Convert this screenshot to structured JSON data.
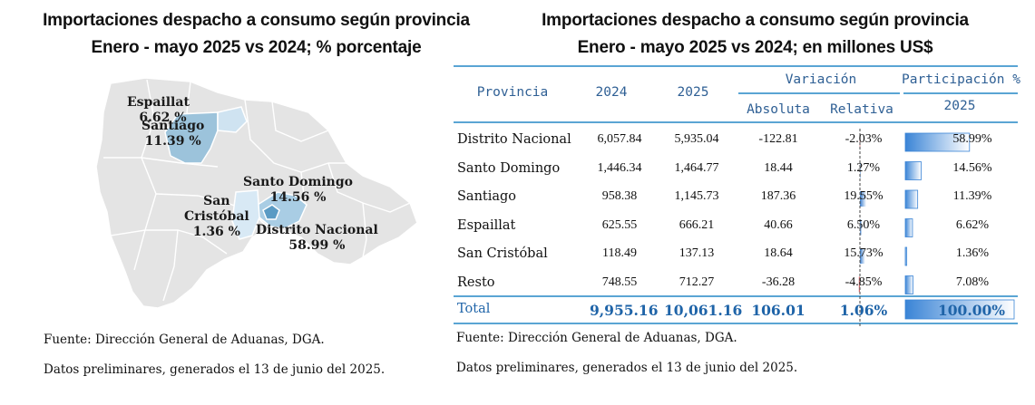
{
  "left_chart": {
    "title_line1": "Importaciones despacho a consumo según provincia",
    "title_line2": "Enero - mayo 2025 vs 2024; % porcentaje",
    "labels": {
      "espaillat": [
        "Espaillat",
        "6.62 %"
      ],
      "santiago": [
        "Santiago",
        "11.39 %"
      ],
      "santo_domingo": [
        "Santo Domingo",
        "14.56 %"
      ],
      "san_cristobal": [
        "San",
        "Cristóbal",
        "1.36 %"
      ],
      "distrito_nacional": [
        "Distrito Nacional",
        "58.99 %"
      ]
    },
    "colors": {
      "land": "#e4e4e4",
      "border": "#ffffff",
      "santiago": "#9cc3db",
      "espaillat": "#cfe3f1",
      "santo_domingo": "#a9cde4",
      "san_cristobal": "#d8e9f5",
      "distrito_nacional": "#5a9bc4"
    },
    "source": "Fuente: Dirección  General de Aduanas, DGA.",
    "note": "Datos preliminares, generados el  13 de junio del  2025."
  },
  "right_table": {
    "title_line1": "Importaciones despacho a consumo según provincia",
    "title_line2": "Enero - mayo 2025 vs 2024; en millones US$",
    "headers": {
      "provincia": "Provincia",
      "y2024": "2024",
      "y2025": "2025",
      "variacion": "Variación",
      "absoluta": "Absoluta",
      "relativa": "Relativa",
      "participacion": "Participación %",
      "participacion_year": "2025"
    },
    "rows": [
      {
        "provincia": "Distrito Nacional",
        "y2024": "6,057.84",
        "y2025": "5,935.04",
        "absoluta": "-122.81",
        "relativa": "-2.03%",
        "participacion": "58.99%"
      },
      {
        "provincia": "Santo Domingo",
        "y2024": "1,446.34",
        "y2025": "1,464.77",
        "absoluta": "18.44",
        "relativa": "1.27%",
        "participacion": "14.56%"
      },
      {
        "provincia": "Santiago",
        "y2024": "958.38",
        "y2025": "1,145.73",
        "absoluta": "187.36",
        "relativa": "19.55%",
        "participacion": "11.39%"
      },
      {
        "provincia": "Espaillat",
        "y2024": "625.55",
        "y2025": "666.21",
        "absoluta": "40.66",
        "relativa": "6.50%",
        "participacion": "6.62%"
      },
      {
        "provincia": "San Cristóbal",
        "y2024": "118.49",
        "y2025": "137.13",
        "absoluta": "18.64",
        "relativa": "15.73%",
        "participacion": "1.36%"
      },
      {
        "provincia": "Resto",
        "y2024": "748.55",
        "y2025": "712.27",
        "absoluta": "-36.28",
        "relativa": "-4.85%",
        "participacion": "7.08%"
      }
    ],
    "total": {
      "provincia": "Total",
      "y2024": "9,955.16",
      "y2025": "10,061.16",
      "absoluta": "106.01",
      "relativa": "1.06%",
      "participacion": "100.00%"
    },
    "colors": {
      "rule": "#5aa5d4",
      "header_text": "#2e5f94",
      "total_text": "#1f64a8",
      "bar_positive": "#3b7fd0",
      "bar_negative": "#c0282b",
      "bar_share": "#3a84d6"
    },
    "source": "Fuente: Dirección  General de Aduanas, DGA.",
    "note": "Datos preliminares, generados el  13 de junio del  2025."
  },
  "chart_data": [
    {
      "type": "table",
      "title": "Importaciones despacho a consumo según provincia",
      "subtitle": "Enero - mayo 2025 vs 2024; en millones US$",
      "columns": [
        "Provincia",
        "2024",
        "2025",
        "Absoluta",
        "Relativa",
        "Participación % 2025"
      ],
      "categories": [
        "Distrito Nacional",
        "Santo Domingo",
        "Santiago",
        "Espaillat",
        "San Cristóbal",
        "Resto"
      ],
      "series": [
        {
          "name": "2024",
          "values": [
            6057.84,
            1446.34,
            958.38,
            625.55,
            118.49,
            748.55
          ]
        },
        {
          "name": "2025",
          "values": [
            5935.04,
            1464.77,
            1145.73,
            666.21,
            137.13,
            712.27
          ]
        },
        {
          "name": "Absoluta",
          "values": [
            -122.81,
            18.44,
            187.36,
            40.66,
            18.64,
            -36.28
          ]
        },
        {
          "name": "Relativa",
          "values": [
            -2.03,
            1.27,
            19.55,
            6.5,
            15.73,
            -4.85
          ]
        },
        {
          "name": "Participación % 2025",
          "values": [
            58.99,
            14.56,
            11.39,
            6.62,
            1.36,
            7.08
          ]
        }
      ],
      "total": {
        "2024": 9955.16,
        "2025": 10061.16,
        "Absoluta": 106.01,
        "Relativa": 1.06,
        "Participación % 2025": 100.0
      }
    }
  ]
}
